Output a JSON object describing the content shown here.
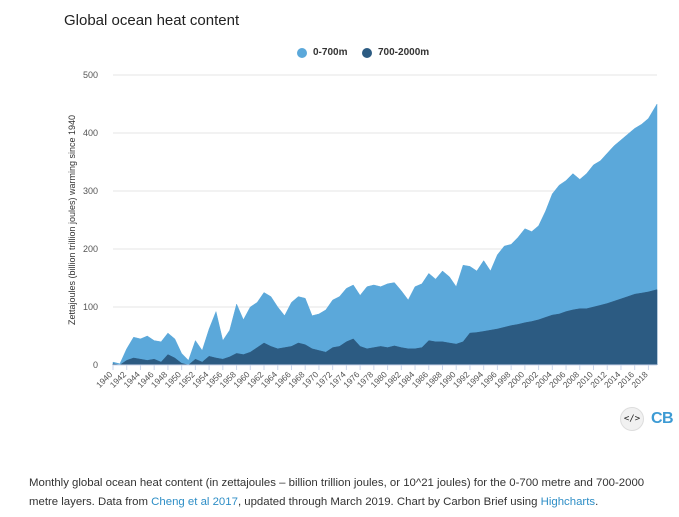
{
  "title": "Global ocean heat content",
  "legend": [
    {
      "label": "0-700m",
      "color": "#5ba8da"
    },
    {
      "label": "700-2000m",
      "color": "#2c5b82"
    }
  ],
  "toolbar": {
    "embed_icon": "code-icon",
    "embed_label": "</>",
    "logo": "CB"
  },
  "caption": {
    "part1": "Monthly global ocean heat content (in zettajoules – billion trillion joules, or 10^21 joules) for the 0-700 metre and 700-2000 metre layers. Data from ",
    "link1": "Cheng et al 2017",
    "part2": ", updated through March 2019. Chart by Carbon Brief using ",
    "link2": "Highcharts",
    "part3": "."
  },
  "chart_data": {
    "type": "area",
    "stacked": false,
    "title": "Global ocean heat content",
    "ylabel": "Zettajoules (billion trillion joules) warming since 1940",
    "xlabel": "",
    "ylim": [
      0,
      500
    ],
    "xlim": [
      1940,
      2019.25
    ],
    "yticks": [
      0,
      100,
      200,
      300,
      400,
      500
    ],
    "xticks": [
      "1940",
      "1942",
      "1944",
      "1946",
      "1948",
      "1950",
      "1952",
      "1954",
      "1956",
      "1958",
      "1960",
      "1962",
      "1964",
      "1966",
      "1968",
      "1970",
      "1972",
      "1974",
      "1976",
      "1978",
      "1980",
      "1982",
      "1984",
      "1986",
      "1988",
      "1990",
      "1992",
      "1994",
      "1996",
      "1998",
      "2000",
      "2002",
      "2004",
      "2006",
      "2008",
      "2010",
      "2012",
      "2014",
      "2016",
      "2018"
    ],
    "grid": true,
    "legend_position": "top",
    "x": [
      1940,
      1941,
      1942,
      1943,
      1944,
      1945,
      1946,
      1947,
      1948,
      1949,
      1950,
      1951,
      1952,
      1953,
      1954,
      1955,
      1956,
      1957,
      1958,
      1959,
      1960,
      1961,
      1962,
      1963,
      1964,
      1965,
      1966,
      1967,
      1968,
      1969,
      1970,
      1971,
      1972,
      1973,
      1974,
      1975,
      1976,
      1977,
      1978,
      1979,
      1980,
      1981,
      1982,
      1983,
      1984,
      1985,
      1986,
      1987,
      1988,
      1989,
      1990,
      1991,
      1992,
      1993,
      1994,
      1995,
      1996,
      1997,
      1998,
      1999,
      2000,
      2001,
      2002,
      2003,
      2004,
      2005,
      2006,
      2007,
      2008,
      2009,
      2010,
      2011,
      2012,
      2013,
      2014,
      2015,
      2016,
      2017,
      2018,
      2019.25
    ],
    "series": [
      {
        "name": "0-700m",
        "color": "#5ba8da",
        "values": [
          5,
          2,
          28,
          48,
          45,
          50,
          42,
          40,
          55,
          45,
          20,
          8,
          42,
          25,
          62,
          92,
          42,
          60,
          105,
          78,
          100,
          108,
          125,
          118,
          100,
          85,
          108,
          118,
          115,
          85,
          88,
          95,
          112,
          118,
          132,
          138,
          120,
          135,
          138,
          135,
          140,
          142,
          128,
          112,
          135,
          140,
          158,
          148,
          162,
          152,
          135,
          172,
          170,
          162,
          180,
          162,
          190,
          205,
          208,
          220,
          235,
          230,
          240,
          265,
          295,
          310,
          318,
          330,
          320,
          330,
          345,
          352,
          365,
          378,
          388,
          398,
          408,
          415,
          425,
          450
        ]
      },
      {
        "name": "700-2000m",
        "color": "#2c5b82",
        "values": [
          2,
          0,
          8,
          12,
          10,
          8,
          10,
          5,
          18,
          12,
          3,
          0,
          10,
          5,
          15,
          12,
          10,
          14,
          20,
          18,
          22,
          30,
          38,
          32,
          28,
          30,
          32,
          38,
          35,
          28,
          25,
          22,
          30,
          32,
          40,
          45,
          32,
          28,
          30,
          32,
          30,
          33,
          30,
          28,
          28,
          30,
          42,
          40,
          40,
          38,
          36,
          40,
          55,
          56,
          58,
          60,
          62,
          65,
          68,
          70,
          73,
          75,
          78,
          82,
          86,
          88,
          92,
          95,
          97,
          97,
          100,
          103,
          106,
          110,
          114,
          118,
          122,
          124,
          126,
          130
        ]
      }
    ]
  }
}
